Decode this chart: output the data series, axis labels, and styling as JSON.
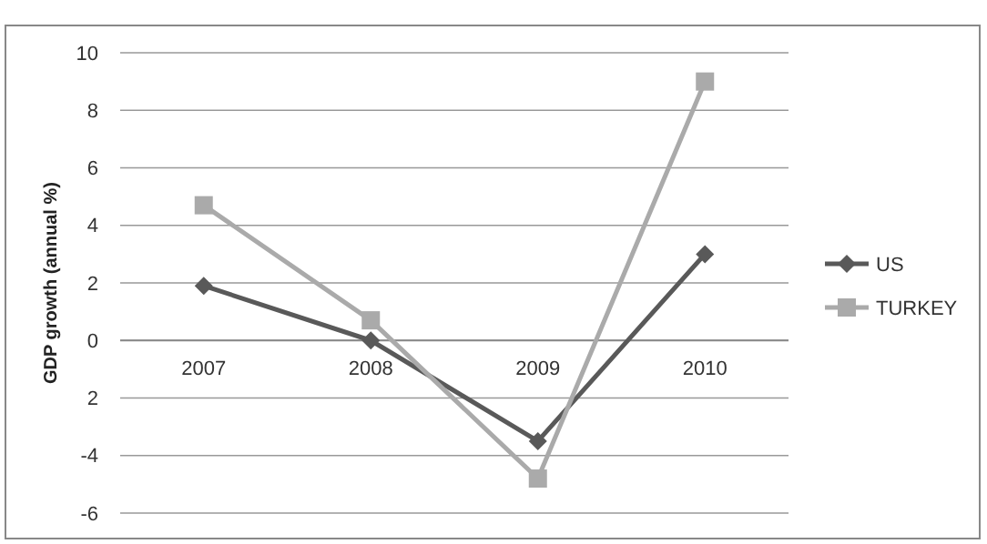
{
  "chart_data": {
    "type": "line",
    "ylabel": "GDP growth (annual %)",
    "categories": [
      "2007",
      "2008",
      "2009",
      "2010"
    ],
    "series": [
      {
        "name": "US",
        "color": "#595959",
        "values": [
          1.9,
          0,
          -3.5,
          3.0
        ],
        "marker": "diamond"
      },
      {
        "name": "TURKEY",
        "color": "#aaaaaa",
        "values": [
          4.7,
          0.7,
          -4.8,
          9.0
        ],
        "marker": "square"
      }
    ],
    "ylim": [
      -6,
      10
    ],
    "yticks": [
      -6,
      -4,
      {
        "value": -2,
        "label": "2"
      },
      0,
      2,
      4,
      6,
      8,
      10
    ],
    "grid": "y",
    "legend": "right",
    "line_style": "solid"
  }
}
